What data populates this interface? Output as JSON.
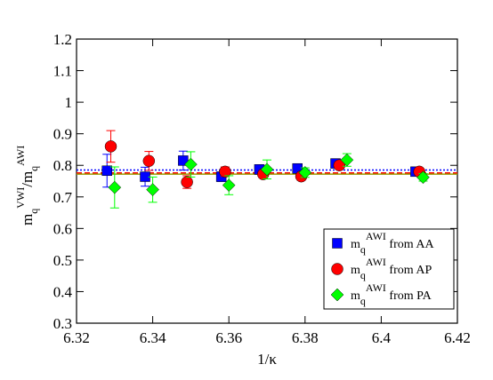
{
  "chart_data": {
    "type": "scatter",
    "xlabel": "1/κ",
    "ylabel": [
      {
        "text": "m"
      },
      {
        "text": "q",
        "pos": "sub"
      },
      {
        "text": "VWI",
        "pos": "sup"
      },
      {
        "text": "/m"
      },
      {
        "text": "q",
        "pos": "sub"
      },
      {
        "text": "AWI",
        "pos": "sup"
      }
    ],
    "xlim": [
      6.32,
      6.42
    ],
    "xticks": [
      6.32,
      6.34,
      6.36,
      6.38,
      6.4,
      6.42
    ],
    "ylim": [
      0.3,
      1.2
    ],
    "yticks": [
      0.3,
      0.4,
      0.5,
      0.6,
      0.7,
      0.8,
      0.9,
      1,
      1.1,
      1.2
    ],
    "legend": "lower right",
    "fit_lines": [
      {
        "value": 0.785,
        "color": "#0000ff",
        "style": "dotted"
      },
      {
        "value": 0.776,
        "color": "#ff0000",
        "style": "dashed"
      },
      {
        "value": 0.772,
        "color": "#9a9a00",
        "style": "solid"
      }
    ],
    "series": [
      {
        "name": [
          {
            "text": "m"
          },
          {
            "text": "q",
            "pos": "sub"
          },
          {
            "text": "AWI",
            "pos": "sup"
          },
          {
            "text": " from AA"
          }
        ],
        "color": "#0000ff",
        "marker": "square",
        "x": [
          6.328,
          6.338,
          6.348,
          6.358,
          6.368,
          6.378,
          6.388,
          6.409
        ],
        "values": [
          0.783,
          0.764,
          0.815,
          0.764,
          0.787,
          0.79,
          0.806,
          0.78
        ],
        "errors": [
          0.052,
          0.03,
          0.03,
          0.015,
          0.015,
          0.015,
          0.01,
          0.005
        ]
      },
      {
        "name": [
          {
            "text": "m"
          },
          {
            "text": "q",
            "pos": "sub"
          },
          {
            "text": "AWI",
            "pos": "sup"
          },
          {
            "text": " from AP"
          }
        ],
        "color": "#ff0000",
        "marker": "circle",
        "x": [
          6.329,
          6.339,
          6.349,
          6.359,
          6.369,
          6.379,
          6.389,
          6.41
        ],
        "values": [
          0.86,
          0.814,
          0.747,
          0.78,
          0.772,
          0.765,
          0.8,
          0.78
        ],
        "errors": [
          0.05,
          0.03,
          0.02,
          0.015,
          0.012,
          0.012,
          0.01,
          0.005
        ]
      },
      {
        "name": [
          {
            "text": "m"
          },
          {
            "text": "q",
            "pos": "sub"
          },
          {
            "text": "AWI",
            "pos": "sup"
          },
          {
            "text": " from PA"
          }
        ],
        "color": "#00ff00",
        "marker": "diamond",
        "x": [
          6.33,
          6.34,
          6.35,
          6.36,
          6.37,
          6.38,
          6.391,
          6.411
        ],
        "values": [
          0.73,
          0.723,
          0.803,
          0.737,
          0.787,
          0.777,
          0.817,
          0.762
        ],
        "errors": [
          0.065,
          0.04,
          0.04,
          0.03,
          0.03,
          0.015,
          0.02,
          0.012
        ]
      }
    ]
  }
}
